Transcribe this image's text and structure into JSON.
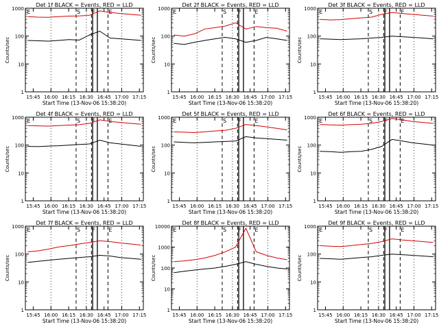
{
  "figure": {
    "xlabel": "Start Time (13-Nov-06 15:38:20)",
    "ylabel": "Counts/sec",
    "x_ticks": [
      "15:45",
      "16:00",
      "16:15",
      "16:30",
      "16:45",
      "17:00",
      "17:15"
    ],
    "y_ticks": [
      "1",
      "10",
      "100",
      "1000"
    ],
    "y_ticks_extended": [
      "1",
      "10",
      "100",
      "1000",
      "10000"
    ],
    "marker_labels": [
      "E",
      "S",
      "F",
      "E"
    ],
    "colors": {
      "events": "#000000",
      "lld": "#d40000",
      "axes": "#000000"
    }
  },
  "chart_data": [
    {
      "type": "line",
      "title": "Det 1f BLACK = Events, RED = LLD",
      "ylim": [
        1,
        1000
      ],
      "series": [
        {
          "name": "BLACK = Events",
          "values": [
            70,
            68,
            66,
            70,
            75,
            72,
            110,
            150,
            85,
            80,
            75,
            70
          ]
        },
        {
          "name": "RED = LLD",
          "values": [
            500,
            480,
            470,
            500,
            520,
            530,
            560,
            800,
            700,
            650,
            600,
            560
          ]
        }
      ]
    },
    {
      "type": "line",
      "title": "Det 2f BLACK = Events, RED = LLD",
      "ylim": [
        1,
        1000
      ],
      "series": [
        {
          "name": "BLACK = Events",
          "values": [
            55,
            50,
            60,
            70,
            80,
            90,
            80,
            60,
            70,
            90,
            80,
            70
          ]
        },
        {
          "name": "RED = LLD",
          "values": [
            110,
            100,
            120,
            180,
            200,
            230,
            300,
            180,
            220,
            200,
            190,
            150
          ]
        }
      ]
    },
    {
      "type": "line",
      "title": "Det 3f BLACK = Events, RED = LLD",
      "ylim": [
        1,
        1000
      ],
      "series": [
        {
          "name": "BLACK = Events",
          "values": [
            80,
            78,
            75,
            78,
            80,
            85,
            90,
            100,
            95,
            90,
            85,
            80
          ]
        },
        {
          "name": "RED = LLD",
          "values": [
            400,
            380,
            390,
            420,
            450,
            480,
            600,
            700,
            650,
            600,
            560,
            520
          ]
        }
      ]
    },
    {
      "type": "line",
      "title": "Det 4f BLACK = Events, RED = LLD",
      "ylim": [
        1,
        1000
      ],
      "series": [
        {
          "name": "BLACK = Events",
          "values": [
            90,
            88,
            92,
            95,
            100,
            105,
            110,
            150,
            120,
            110,
            100,
            90
          ]
        },
        {
          "name": "RED = LLD",
          "values": [
            500,
            490,
            480,
            500,
            520,
            540,
            600,
            800,
            700,
            650,
            600,
            560
          ]
        }
      ]
    },
    {
      "type": "line",
      "title": "Det 5f BLACK = Events, RED = LLD",
      "ylim": [
        1,
        1000
      ],
      "series": [
        {
          "name": "BLACK = Events",
          "values": [
            130,
            125,
            120,
            125,
            130,
            135,
            140,
            200,
            180,
            170,
            160,
            150
          ]
        },
        {
          "name": "RED = LLD",
          "values": [
            300,
            290,
            280,
            300,
            320,
            340,
            400,
            550,
            500,
            450,
            400,
            350
          ]
        }
      ]
    },
    {
      "type": "line",
      "title": "Det 6f BLACK = Events, RED = LLD",
      "ylim": [
        1,
        1000
      ],
      "series": [
        {
          "name": "BLACK = Events",
          "values": [
            60,
            58,
            55,
            58,
            60,
            70,
            90,
            160,
            140,
            120,
            110,
            100
          ]
        },
        {
          "name": "RED = LLD",
          "values": [
            550,
            530,
            520,
            540,
            560,
            600,
            700,
            900,
            800,
            700,
            650,
            600
          ]
        }
      ]
    },
    {
      "type": "line",
      "title": "Det 7f BLACK = Events, RED = LLD",
      "ylim": [
        1,
        1000
      ],
      "series": [
        {
          "name": "BLACK = Events",
          "values": [
            50,
            55,
            60,
            65,
            70,
            75,
            80,
            90,
            85,
            75,
            70,
            65
          ]
        },
        {
          "name": "RED = LLD",
          "values": [
            120,
            130,
            150,
            180,
            200,
            230,
            260,
            300,
            280,
            250,
            230,
            210
          ]
        }
      ]
    },
    {
      "type": "line",
      "title": "Det 8f BLACK = Events, RED = LLD",
      "ylim": [
        1,
        10000
      ],
      "series": [
        {
          "name": "BLACK = Events",
          "values": [
            60,
            70,
            80,
            90,
            100,
            120,
            150,
            200,
            150,
            120,
            100,
            90
          ]
        },
        {
          "name": "RED = LLD",
          "values": [
            200,
            220,
            250,
            300,
            400,
            600,
            1000,
            8000,
            600,
            400,
            300,
            250
          ]
        }
      ]
    },
    {
      "type": "line",
      "title": "Det 9f BLACK = Events, RED = LLD",
      "ylim": [
        1,
        1000
      ],
      "series": [
        {
          "name": "BLACK = Events",
          "values": [
            70,
            68,
            65,
            70,
            75,
            80,
            90,
            100,
            95,
            90,
            85,
            80
          ]
        },
        {
          "name": "RED = LLD",
          "values": [
            200,
            190,
            185,
            200,
            220,
            240,
            280,
            350,
            320,
            300,
            280,
            260
          ]
        }
      ]
    }
  ]
}
